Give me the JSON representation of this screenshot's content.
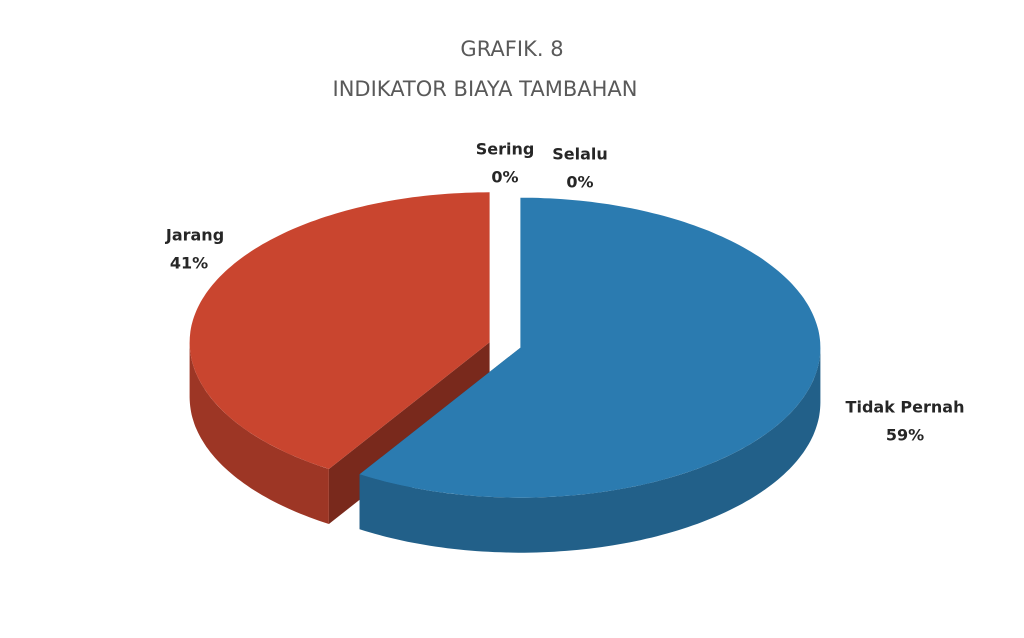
{
  "chart_data": {
    "type": "pie3d",
    "title": "GRAFIK. 8",
    "subtitle": "INDIKATOR BIAYA TAMBAHAN",
    "categories": [
      "Tidak Pernah",
      "Jarang",
      "Sering",
      "Selalu"
    ],
    "values": [
      59,
      41,
      0,
      0
    ],
    "value_labels": [
      "59%",
      "41%",
      "0%",
      "0%"
    ],
    "colors": [
      "#2b7bb0",
      "#c9452f",
      "#9bbb59",
      "#8064a2"
    ]
  }
}
